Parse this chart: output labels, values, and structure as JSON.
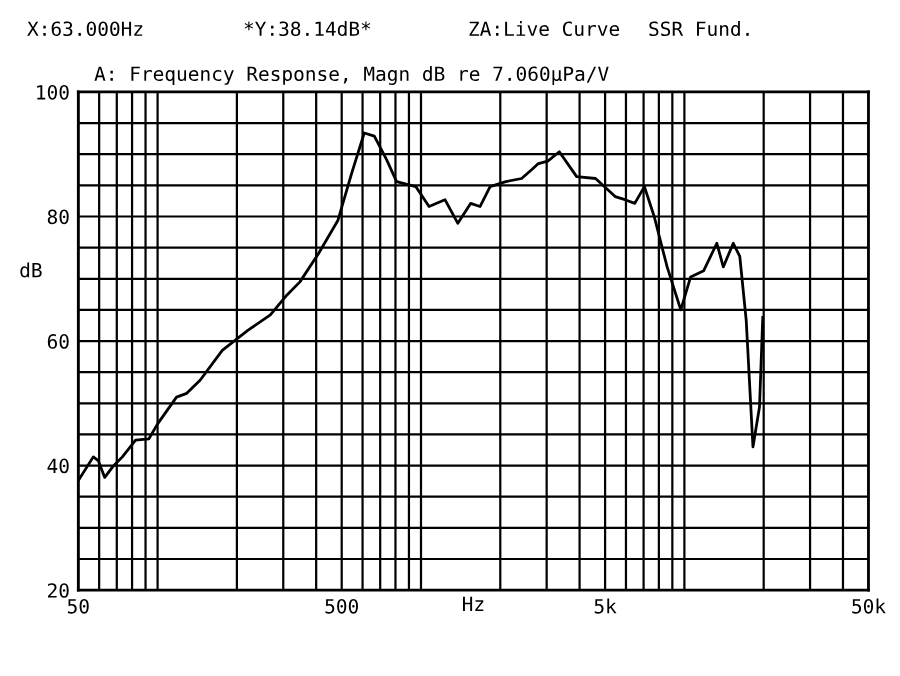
{
  "chart_data": {
    "type": "line",
    "title": "A: Frequency Response, Magn dB re 7.060µPa/V",
    "xlabel": "Hz",
    "ylabel": "dB",
    "log": "x",
    "grid": true,
    "marker": "none",
    "line_style": "solid",
    "annotations": [
      "X:63.000Hz",
      "*Y:38.14dB*",
      "ZA:Live Curve",
      "SSR Fund."
    ],
    "xlim": [
      50,
      50000
    ],
    "ylim": [
      20,
      100
    ],
    "xticks": [
      50,
      {
        "value": 60,
        "label": null
      },
      {
        "value": 70,
        "label": null
      },
      {
        "value": 80,
        "label": null
      },
      {
        "value": 90,
        "label": null
      },
      {
        "value": 100,
        "label": null
      },
      {
        "value": 200,
        "label": null
      },
      {
        "value": 300,
        "label": null
      },
      {
        "value": 400,
        "label": null
      },
      500,
      {
        "value": 600,
        "label": null
      },
      {
        "value": 700,
        "label": null
      },
      {
        "value": 800,
        "label": null
      },
      {
        "value": 900,
        "label": null
      },
      {
        "value": 1000,
        "label": null
      },
      {
        "value": 2000,
        "label": null
      },
      {
        "value": 3000,
        "label": null
      },
      {
        "value": 4000,
        "label": null
      },
      {
        "value": 5000,
        "label": "5k"
      },
      {
        "value": 6000,
        "label": null
      },
      {
        "value": 7000,
        "label": null
      },
      {
        "value": 8000,
        "label": null
      },
      {
        "value": 9000,
        "label": null
      },
      {
        "value": 10000,
        "label": null
      },
      {
        "value": 20000,
        "label": null
      },
      {
        "value": 30000,
        "label": null
      },
      {
        "value": 40000,
        "label": null
      },
      {
        "value": 50000,
        "label": "50k"
      }
    ],
    "yticks": [
      20,
      {
        "value": 25,
        "label": null
      },
      {
        "value": 30,
        "label": null
      },
      {
        "value": 35,
        "label": null
      },
      40,
      {
        "value": 45,
        "label": null
      },
      {
        "value": 50,
        "label": null
      },
      {
        "value": 55,
        "label": null
      },
      60,
      {
        "value": 65,
        "label": null
      },
      {
        "value": 70,
        "label": null
      },
      {
        "value": 75,
        "label": null
      },
      80,
      {
        "value": 85,
        "label": null
      },
      {
        "value": 90,
        "label": null
      },
      {
        "value": 95,
        "label": null
      },
      100
    ],
    "series": [
      {
        "color": "#000000",
        "x": [
          50,
          57,
          59.5,
          63,
          67.5,
          73.5,
          82.5,
          92.7,
          100,
          118,
          129,
          145,
          176,
          220,
          268,
          310,
          347,
          409,
          484,
          545,
          609,
          665,
          741,
          808,
          955,
          1073,
          1233,
          1380,
          1543,
          1675,
          1830,
          2100,
          2410,
          2630,
          2790,
          3030,
          3350,
          3900,
          4600,
          5460,
          5950,
          6480,
          7050,
          7680,
          8600,
          9690,
          10560,
          11840,
          13280,
          14050,
          15330,
          16230,
          17170,
          18210,
          19280,
          19840
        ],
        "values": [
          37.6,
          41.4,
          40.8,
          38.1,
          39.8,
          41.4,
          44.1,
          44.3,
          46.7,
          51.0,
          51.6,
          53.7,
          58.5,
          61.7,
          64.2,
          67.4,
          69.5,
          74.1,
          79.4,
          86.9,
          93.4,
          92.9,
          89.1,
          85.6,
          84.8,
          81.6,
          82.7,
          78.9,
          82.1,
          81.6,
          84.8,
          85.6,
          86.1,
          87.5,
          88.5,
          88.9,
          90.4,
          86.4,
          86.1,
          83.2,
          82.7,
          82.1,
          84.8,
          80.0,
          71.9,
          65.0,
          70.3,
          71.3,
          75.7,
          71.9,
          75.7,
          73.6,
          63.3,
          43.0,
          49.4,
          63.8
        ]
      }
    ]
  }
}
